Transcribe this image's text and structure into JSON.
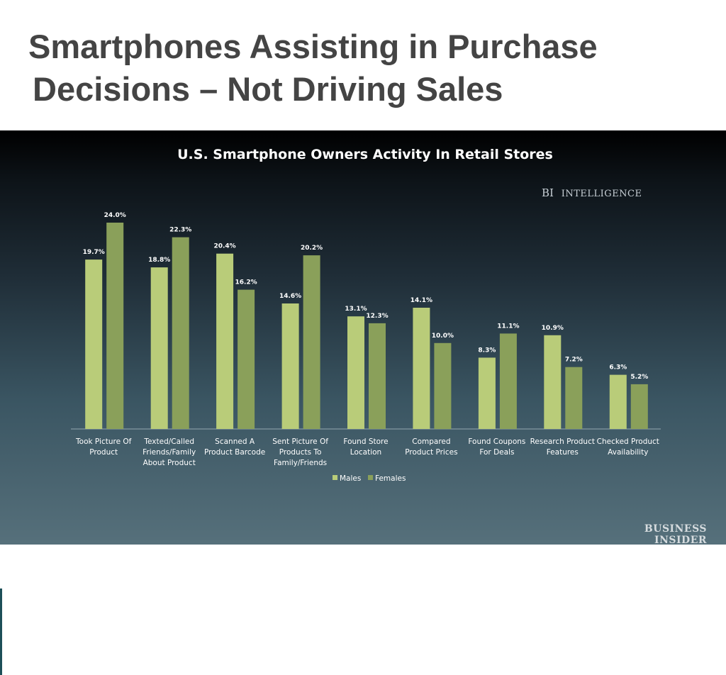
{
  "slide": {
    "title_line1": "Smartphones Assisting in Purchase",
    "title_line2": "Decisions – Not Driving Sales"
  },
  "brand": {
    "bi_abbrev": "BI",
    "bi_word": "Intelligence",
    "source_line1": "BUSINESS",
    "source_line2": "INSIDER"
  },
  "colors": {
    "males": "#b9cc79",
    "females": "#8aa05a"
  },
  "chart_data": {
    "type": "bar",
    "title": "U.S. Smartphone Owners Activity In Retail Stores",
    "categories": [
      [
        "Took Picture Of",
        "Product"
      ],
      [
        "Texted/Called",
        "Friends/Family",
        "About Product"
      ],
      [
        "Scanned A",
        "Product Barcode"
      ],
      [
        "Sent Picture Of",
        "Products To",
        "Family/Friends"
      ],
      [
        "Found Store",
        "Location"
      ],
      [
        "Compared",
        "Product Prices"
      ],
      [
        "Found Coupons",
        "For Deals"
      ],
      [
        "Research Product",
        "Features"
      ],
      [
        "Checked Product",
        "Availability"
      ]
    ],
    "series": [
      {
        "name": "Males",
        "values": [
          19.7,
          18.8,
          20.4,
          14.6,
          13.1,
          14.1,
          8.3,
          10.9,
          6.3
        ],
        "labels": [
          "19.7%",
          "18.8%",
          "20.4%",
          "14.6%",
          "13.1%",
          "14.1%",
          "8.3%",
          "10.9%",
          "6.3%"
        ]
      },
      {
        "name": "Females",
        "values": [
          24.0,
          22.3,
          16.2,
          20.2,
          12.3,
          10.0,
          11.1,
          7.2,
          5.2
        ],
        "labels": [
          "24.0%",
          "22.3%",
          "16.2%",
          "20.2%",
          "12.3%",
          "10.0%",
          "11.1%",
          "7.2%",
          "5.2%"
        ]
      }
    ],
    "ylim": [
      0,
      24
    ],
    "grid": false,
    "legend_position": "bottom"
  }
}
